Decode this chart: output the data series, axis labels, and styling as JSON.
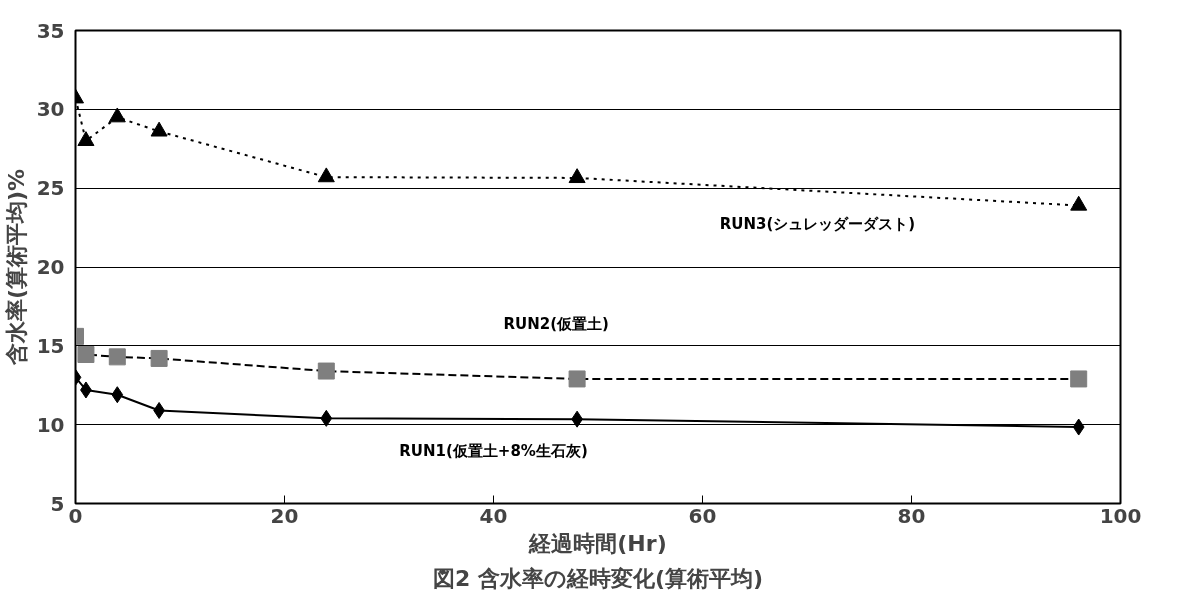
{
  "chart_data": {
    "type": "line",
    "title": "図2 含水率の経時変化(算術平均)",
    "xlabel": "経過時間(Hr)",
    "ylabel": "含水率(算術平均)%",
    "x": [
      0,
      1,
      4,
      8,
      24,
      48,
      96
    ],
    "series": [
      {
        "name": "RUN1(仮置土+8%生石灰)",
        "color": "#000000",
        "marker": "diamond",
        "line_style": "solid",
        "values": [
          13.0,
          12.2,
          11.9,
          10.9,
          10.4,
          10.35,
          9.85
        ]
      },
      {
        "name": "RUN2(仮置土)",
        "color": "#7f7f7f",
        "marker": "square",
        "line_style": "dashed",
        "values": [
          15.6,
          14.45,
          14.3,
          14.2,
          13.4,
          12.9,
          12.9
        ]
      },
      {
        "name": "RUN3(シュレッダーダスト)",
        "color": "#000000",
        "marker": "triangle",
        "line_style": "dotted",
        "values": [
          30.7,
          28.0,
          29.5,
          28.6,
          25.7,
          25.65,
          23.9
        ]
      }
    ],
    "xlim": [
      0,
      100
    ],
    "ylim": [
      5,
      35
    ],
    "xticks": [
      0,
      20,
      40,
      60,
      80,
      100
    ],
    "yticks": [
      5,
      10,
      15,
      20,
      25,
      30,
      35
    ],
    "grid": "y",
    "legend": false
  }
}
